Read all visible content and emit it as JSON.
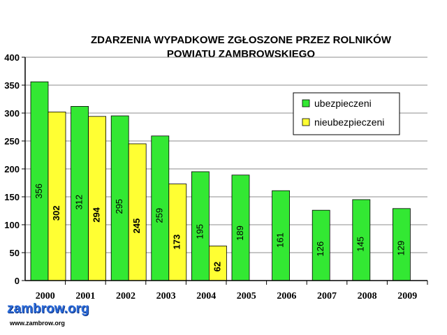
{
  "chart_data": {
    "type": "bar",
    "title": "ZDARZENIA WYPADKOWE ZGŁOSZONE PRZEZ ROLNIKÓW",
    "subtitle": "POWIATU ZAMBROWSKIEGO",
    "categories": [
      "2000",
      "2001",
      "2002",
      "2003",
      "2004",
      "2005",
      "2006",
      "2007",
      "2008",
      "2009"
    ],
    "series": [
      {
        "name": "ubezpieczeni",
        "color": "#33e833",
        "values": [
          356,
          312,
          295,
          259,
          195,
          189,
          161,
          126,
          145,
          129
        ]
      },
      {
        "name": "nieubezpieczeni",
        "color": "#ffff33",
        "values": [
          302,
          294,
          245,
          173,
          62,
          null,
          null,
          null,
          null,
          null
        ]
      }
    ],
    "ylim": [
      0,
      400
    ],
    "yticks": [
      0,
      50,
      100,
      150,
      200,
      250,
      300,
      350,
      400
    ],
    "xlabel": "",
    "ylabel": "",
    "grid": true,
    "legend_position": "top-right"
  },
  "watermark": {
    "logo": "zambrow.org",
    "url": "www.zambrow.org"
  }
}
